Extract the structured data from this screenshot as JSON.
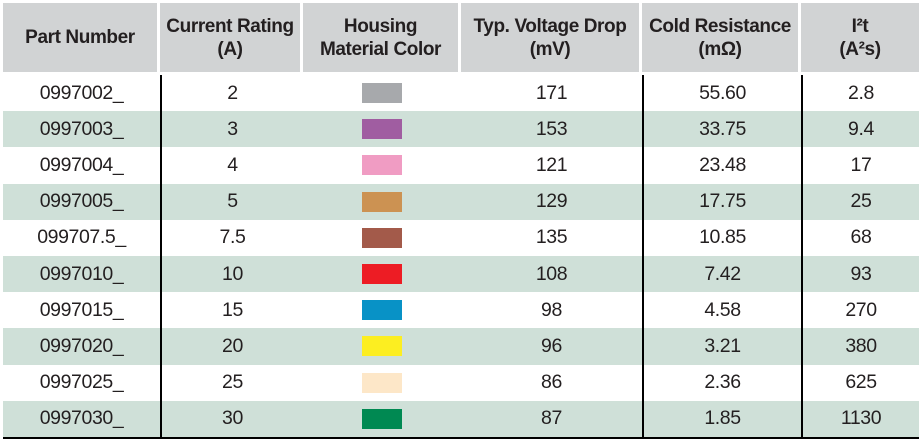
{
  "table": {
    "columns": [
      {
        "key": "part_number",
        "label": "Part Number",
        "sub": ""
      },
      {
        "key": "current_rating",
        "label": "Current Rating",
        "sub": "(A)"
      },
      {
        "key": "housing_material_color",
        "label": "Housing",
        "sub": "Material Color"
      },
      {
        "key": "voltage_drop",
        "label": "Typ. Voltage Drop",
        "sub": "(mV)"
      },
      {
        "key": "cold_resistance",
        "label": "Cold Resistance",
        "sub": "(mΩ)"
      },
      {
        "key": "i2t",
        "label": "I²t",
        "sub": "(A²s)"
      }
    ],
    "rows": [
      {
        "part_number": "0997002_",
        "current_rating": "2",
        "housing_color_name": "gray",
        "housing_color_hex": "#a7a9ac",
        "voltage_drop": "171",
        "cold_resistance": "55.60",
        "i2t": "2.8"
      },
      {
        "part_number": "0997003_",
        "current_rating": "3",
        "housing_color_name": "violet",
        "housing_color_hex": "#a05da1",
        "voltage_drop": "153",
        "cold_resistance": "33.75",
        "i2t": "9.4"
      },
      {
        "part_number": "0997004_",
        "current_rating": "4",
        "housing_color_name": "pink",
        "housing_color_hex": "#f09cc3",
        "voltage_drop": "121",
        "cold_resistance": "23.48",
        "i2t": "17"
      },
      {
        "part_number": "0997005_",
        "current_rating": "5",
        "housing_color_name": "tan",
        "housing_color_hex": "#cc9252",
        "voltage_drop": "129",
        "cold_resistance": "17.75",
        "i2t": "25"
      },
      {
        "part_number": "099707.5_",
        "current_rating": "7.5",
        "housing_color_name": "brown",
        "housing_color_hex": "#a35a4a",
        "voltage_drop": "135",
        "cold_resistance": "10.85",
        "i2t": "68"
      },
      {
        "part_number": "0997010_",
        "current_rating": "10",
        "housing_color_name": "red",
        "housing_color_hex": "#ed1c24",
        "voltage_drop": "108",
        "cold_resistance": "7.42",
        "i2t": "93"
      },
      {
        "part_number": "0997015_",
        "current_rating": "15",
        "housing_color_name": "blue",
        "housing_color_hex": "#0892c6",
        "voltage_drop": "98",
        "cold_resistance": "4.58",
        "i2t": "270"
      },
      {
        "part_number": "0997020_",
        "current_rating": "20",
        "housing_color_name": "yellow",
        "housing_color_hex": "#fcee21",
        "voltage_drop": "96",
        "cold_resistance": "3.21",
        "i2t": "380"
      },
      {
        "part_number": "0997025_",
        "current_rating": "25",
        "housing_color_name": "natural",
        "housing_color_hex": "#fde7c8",
        "voltage_drop": "86",
        "cold_resistance": "2.36",
        "i2t": "625"
      },
      {
        "part_number": "0997030_",
        "current_rating": "30",
        "housing_color_name": "green",
        "housing_color_hex": "#008952",
        "voltage_drop": "87",
        "cold_resistance": "1.85",
        "i2t": "1130"
      }
    ],
    "theme": {
      "header_bg": "#d1d3d4",
      "row_bg": "#ffffff",
      "row_alt_bg": "#cfe0d8",
      "grid_line": "#000000",
      "text": "#231f20"
    }
  }
}
